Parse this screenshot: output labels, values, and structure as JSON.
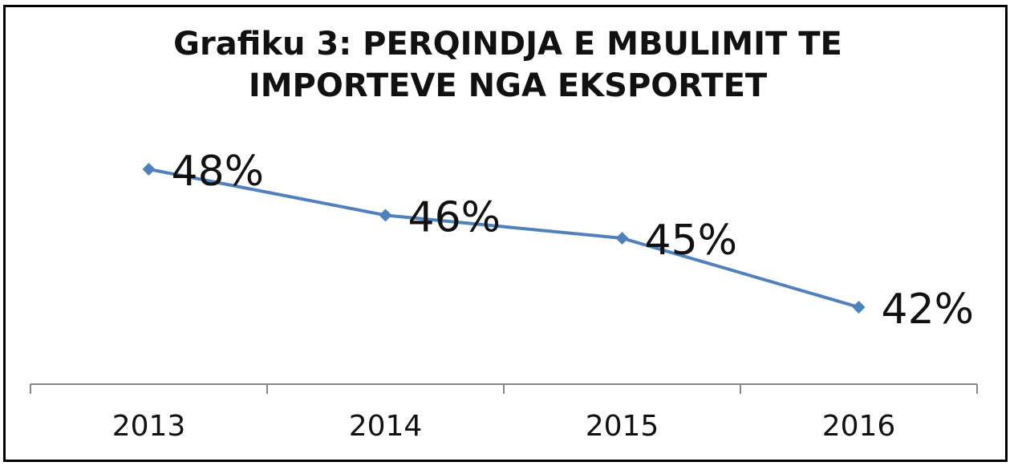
{
  "chart_data": {
    "type": "line",
    "title": [
      "Grafiku 3: PERQINDJA E MBULIMIT TE",
      "IMPORTEVE NGA EKSPORTET"
    ],
    "categories": [
      "2013",
      "2014",
      "2015",
      "2016"
    ],
    "series": [
      {
        "values": [
          48,
          46,
          45,
          42
        ],
        "labels": [
          "48%",
          "46%",
          "45%",
          "42%"
        ],
        "color": "#4f81bd"
      }
    ],
    "y_axis_visible": false,
    "gridlines": false,
    "legend": "none"
  }
}
